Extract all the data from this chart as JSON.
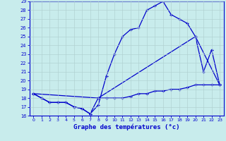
{
  "title": "Graphe des températures (°c)",
  "bg_color": "#c8ecec",
  "line_color": "#0000cc",
  "grid_color": "#b0d0d0",
  "ylim": [
    16,
    29
  ],
  "xlim": [
    -0.5,
    23.5
  ],
  "yticks": [
    16,
    17,
    18,
    19,
    20,
    21,
    22,
    23,
    24,
    25,
    26,
    27,
    28,
    29
  ],
  "xticks": [
    0,
    1,
    2,
    3,
    4,
    5,
    6,
    7,
    8,
    9,
    10,
    11,
    12,
    13,
    14,
    15,
    16,
    17,
    18,
    19,
    20,
    21,
    22,
    23
  ],
  "line1_x": [
    0,
    1,
    2,
    3,
    4,
    5,
    6,
    7,
    8,
    9,
    10,
    11,
    12,
    13,
    14,
    15,
    16,
    17,
    18,
    19,
    20,
    21,
    22,
    23
  ],
  "line1_y": [
    18.5,
    18.0,
    17.5,
    17.5,
    17.5,
    17.0,
    16.8,
    16.2,
    18.0,
    18.0,
    18.0,
    18.0,
    18.2,
    18.5,
    18.5,
    18.8,
    18.8,
    19.0,
    19.0,
    19.2,
    19.5,
    19.5,
    19.5,
    19.5
  ],
  "line2_x": [
    0,
    1,
    2,
    3,
    4,
    5,
    6,
    7,
    8,
    9,
    10,
    11,
    12,
    13,
    14,
    15,
    16,
    17,
    18,
    19,
    20,
    21,
    22,
    23
  ],
  "line2_y": [
    18.5,
    18.0,
    17.5,
    17.5,
    17.5,
    17.0,
    16.8,
    16.2,
    17.2,
    20.5,
    23.0,
    25.0,
    25.8,
    26.0,
    28.0,
    28.5,
    29.0,
    27.5,
    27.0,
    26.5,
    25.0,
    21.0,
    23.5,
    19.5
  ],
  "line3_x": [
    0,
    8,
    20,
    23
  ],
  "line3_y": [
    18.5,
    18.0,
    25.0,
    19.5
  ]
}
